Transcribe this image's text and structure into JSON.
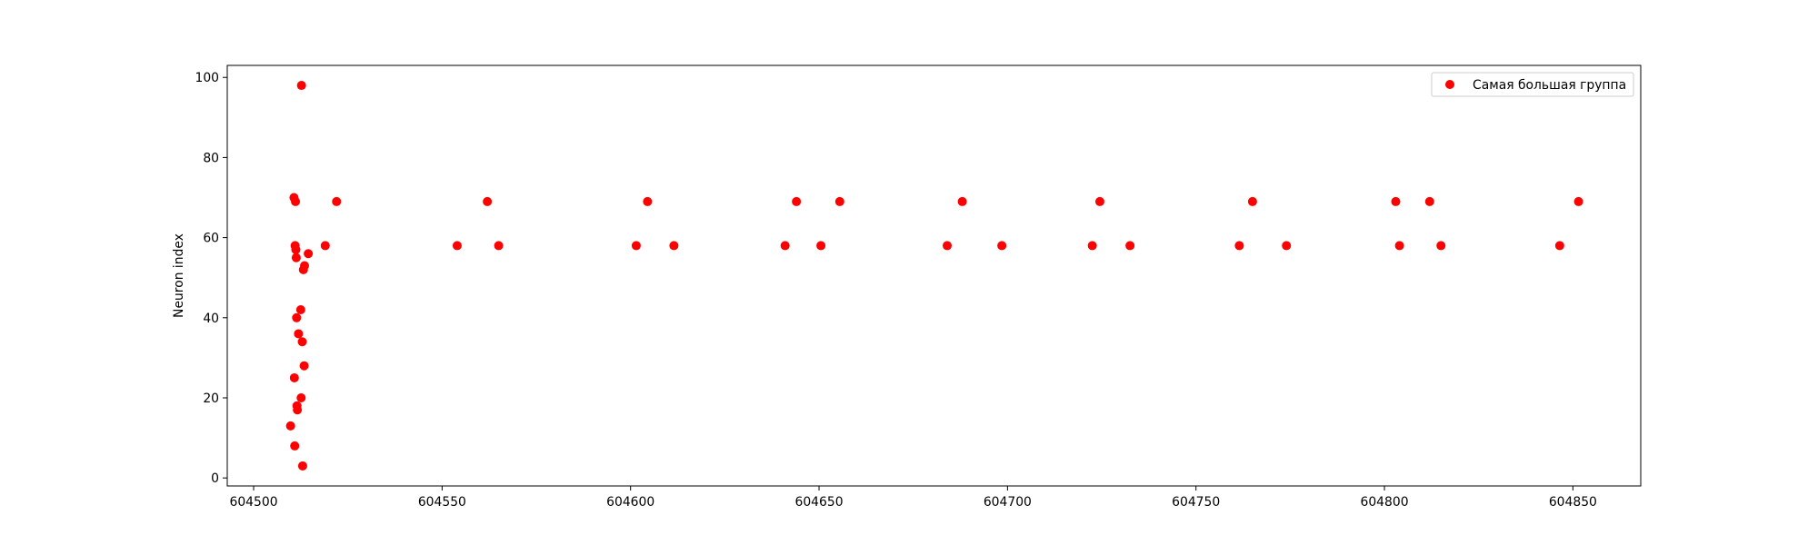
{
  "chart_data": {
    "type": "scatter",
    "title": "",
    "xlabel": "",
    "ylabel": "Neuron index",
    "xlim": [
      604493,
      604868
    ],
    "ylim": [
      -2,
      103
    ],
    "xticks": [
      604500,
      604550,
      604600,
      604650,
      604700,
      604750,
      604800,
      604850
    ],
    "yticks": [
      0,
      20,
      40,
      60,
      80,
      100
    ],
    "grid": false,
    "legend_position": "top-right",
    "series": [
      {
        "name": "Самая большая группа",
        "color": "#ff0000",
        "points": [
          [
            604509.8,
            13
          ],
          [
            604510.9,
            8
          ],
          [
            604510.8,
            25
          ],
          [
            604510.7,
            70
          ],
          [
            604511.1,
            69
          ],
          [
            604511.0,
            58
          ],
          [
            604511.2,
            57
          ],
          [
            604511.3,
            55
          ],
          [
            604511.4,
            40
          ],
          [
            604511.5,
            18
          ],
          [
            604511.6,
            17
          ],
          [
            604511.9,
            36
          ],
          [
            604512.5,
            42
          ],
          [
            604512.6,
            20
          ],
          [
            604512.7,
            98
          ],
          [
            604512.9,
            34
          ],
          [
            604513.0,
            3
          ],
          [
            604513.2,
            52
          ],
          [
            604513.5,
            53
          ],
          [
            604513.4,
            28
          ],
          [
            604514.5,
            56
          ],
          [
            604519.0,
            58
          ],
          [
            604522.0,
            69
          ],
          [
            604554.0,
            58
          ],
          [
            604562.0,
            69
          ],
          [
            604565.0,
            58
          ],
          [
            604601.5,
            58
          ],
          [
            604604.5,
            69
          ],
          [
            604611.5,
            58
          ],
          [
            604641.0,
            58
          ],
          [
            604644.0,
            69
          ],
          [
            604650.5,
            58
          ],
          [
            604655.5,
            69
          ],
          [
            604684.0,
            58
          ],
          [
            604688.0,
            69
          ],
          [
            604698.5,
            58
          ],
          [
            604722.5,
            58
          ],
          [
            604724.5,
            69
          ],
          [
            604732.5,
            58
          ],
          [
            604761.5,
            58
          ],
          [
            604765.0,
            69
          ],
          [
            604774.0,
            58
          ],
          [
            604803.0,
            69
          ],
          [
            604804.0,
            58
          ],
          [
            604812.0,
            69
          ],
          [
            604815.0,
            58
          ],
          [
            604846.5,
            58
          ],
          [
            604851.5,
            69
          ]
        ]
      }
    ]
  }
}
